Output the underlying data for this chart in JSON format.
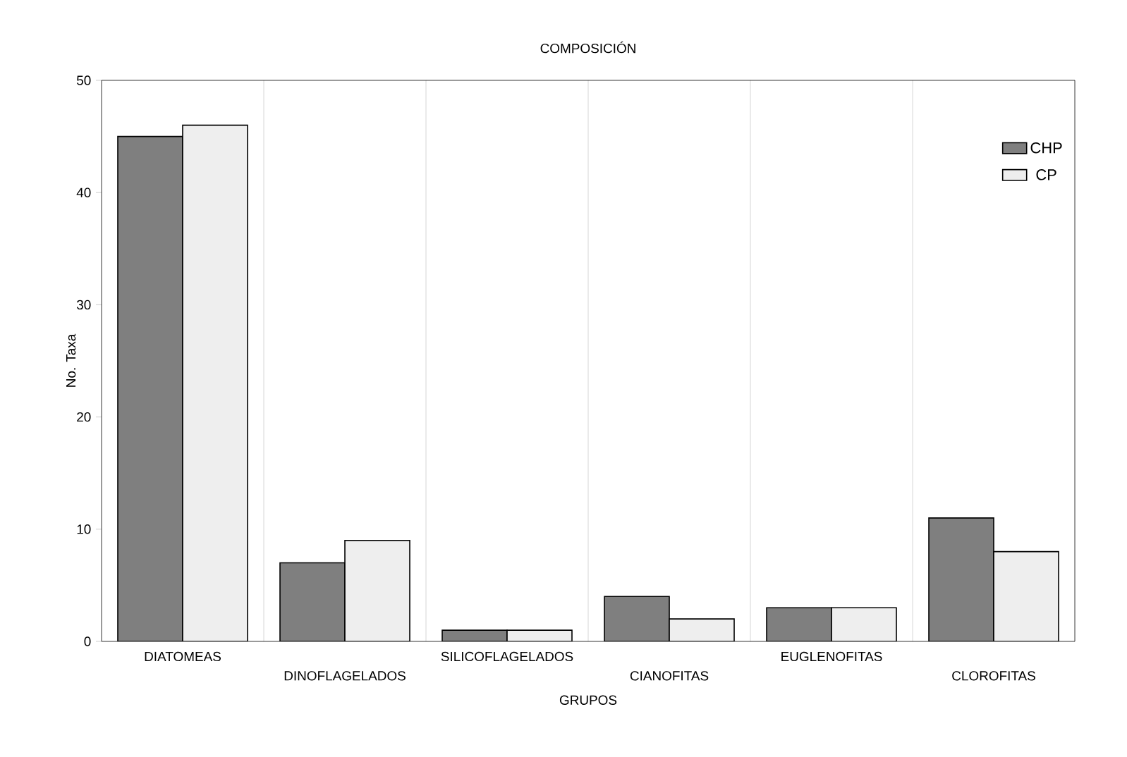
{
  "chart_data": {
    "type": "bar",
    "title": "COMPOSICIÓN",
    "xlabel": "GRUPOS",
    "ylabel": "No. Taxa",
    "categories": [
      "DIATOMEAS",
      "DINOFLAGELADOS",
      "SILICOFLAGELADOS",
      "CIANOFITAS",
      "EUGLENOFITAS",
      "CLOROFITAS"
    ],
    "series": [
      {
        "name": "CHP",
        "color": "#7f7f7f",
        "values": [
          45,
          7,
          1,
          4,
          3,
          11
        ]
      },
      {
        "name": "CP",
        "color": "#eeeeee",
        "values": [
          46,
          9,
          1,
          2,
          3,
          8
        ]
      }
    ],
    "ylim": [
      0,
      50
    ],
    "yticks": [
      0,
      10,
      20,
      30,
      40,
      50
    ],
    "grid": "x",
    "legend": "top right"
  }
}
